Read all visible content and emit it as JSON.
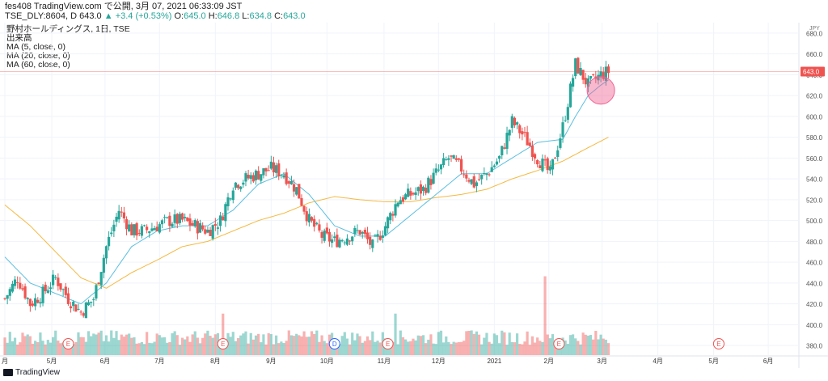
{
  "header": {
    "line1": "fes408 TradingView.com で公開, 3月 07, 2021 06:33:09 JST",
    "symbol": "TSE_DLY:8604, D",
    "last": "643.0",
    "change_arrow": "▲",
    "change": "+3.4 (+0.53%)",
    "o_label": "O:",
    "o": "645.0",
    "h_label": "H:",
    "h": "646.8",
    "l_label": "L:",
    "l": "634.8",
    "c_label": "C:",
    "c": "643.0"
  },
  "legend": {
    "title": "野村ホールディングス, 1日, TSE",
    "volume": "出来高",
    "ma5": "MA (5, close, 0)",
    "ma20": "MA (20, close, 0)",
    "ma60": "MA (60, close, 0)"
  },
  "watermark": "TradingView",
  "colors": {
    "up": "#26a69a",
    "down": "#ef5350",
    "ma5": "#1e5bcf",
    "ma20": "#5bbfe0",
    "ma60": "#f5b941",
    "price_line": "#ef5350",
    "highlight": "#f06292"
  },
  "chart_data": {
    "type": "candlestick",
    "currency": "JPY",
    "last_price_label": "643.0",
    "y_ticks": [
      380,
      400,
      420,
      440,
      460,
      480,
      500,
      520,
      540,
      560,
      580,
      600,
      620,
      640,
      660,
      680
    ],
    "ylim": [
      370,
      690
    ],
    "x_labels": [
      {
        "label": "月",
        "week": 0
      },
      {
        "label": "5月",
        "week": 3.7
      },
      {
        "label": "6月",
        "week": 7.9
      },
      {
        "label": "7月",
        "week": 12.2
      },
      {
        "label": "8月",
        "week": 16.6
      },
      {
        "label": "9月",
        "week": 21
      },
      {
        "label": "10月",
        "week": 25.4
      },
      {
        "label": "11月",
        "week": 29.9
      },
      {
        "label": "12月",
        "week": 34.2
      },
      {
        "label": "2021",
        "week": 38.6
      },
      {
        "label": "2月",
        "week": 42.9
      },
      {
        "label": "3月",
        "week": 47.1
      },
      {
        "label": "4月",
        "week": 51.5
      },
      {
        "label": "5月",
        "week": 55.9
      },
      {
        "label": "6月",
        "week": 60.2
      }
    ],
    "event_markers": [
      {
        "label": "E",
        "week": 5.0
      },
      {
        "label": "E",
        "week": 17.2
      },
      {
        "label": "D",
        "week": 26.0
      },
      {
        "label": "E",
        "week": 30.2
      },
      {
        "label": "E",
        "week": 43.7
      },
      {
        "label": "E",
        "week": 56.3
      }
    ],
    "weeks_total": 63,
    "close_keypoints": [
      [
        0,
        425
      ],
      [
        1,
        445
      ],
      [
        2,
        420
      ],
      [
        3,
        430
      ],
      [
        4,
        445
      ],
      [
        5,
        425
      ],
      [
        6,
        412
      ],
      [
        7,
        425
      ],
      [
        8,
        475
      ],
      [
        9,
        510
      ],
      [
        10,
        490
      ],
      [
        11,
        490
      ],
      [
        12,
        495
      ],
      [
        13,
        500
      ],
      [
        14,
        500
      ],
      [
        15,
        495
      ],
      [
        16,
        490
      ],
      [
        17,
        500
      ],
      [
        18,
        535
      ],
      [
        19,
        540
      ],
      [
        20,
        545
      ],
      [
        21,
        550
      ],
      [
        22,
        545
      ],
      [
        23,
        530
      ],
      [
        24,
        500
      ],
      [
        25,
        485
      ],
      [
        26,
        480
      ],
      [
        27,
        485
      ],
      [
        28,
        490
      ],
      [
        29,
        475
      ],
      [
        30,
        495
      ],
      [
        31,
        520
      ],
      [
        32,
        525
      ],
      [
        33,
        530
      ],
      [
        34,
        545
      ],
      [
        35,
        560
      ],
      [
        36,
        550
      ],
      [
        37,
        535
      ],
      [
        38,
        545
      ],
      [
        39,
        560
      ],
      [
        40,
        595
      ],
      [
        41,
        580
      ],
      [
        42,
        560
      ],
      [
        43,
        545
      ],
      [
        44,
        590
      ],
      [
        45,
        650
      ],
      [
        46,
        630
      ],
      [
        47,
        640
      ],
      [
        47.6,
        643
      ]
    ],
    "ma20_keypoints": [
      [
        0,
        465
      ],
      [
        2,
        440
      ],
      [
        4,
        430
      ],
      [
        6,
        420
      ],
      [
        8,
        440
      ],
      [
        10,
        475
      ],
      [
        12,
        490
      ],
      [
        14,
        495
      ],
      [
        16,
        495
      ],
      [
        18,
        510
      ],
      [
        20,
        535
      ],
      [
        22,
        545
      ],
      [
        24,
        525
      ],
      [
        26,
        495
      ],
      [
        28,
        485
      ],
      [
        30,
        485
      ],
      [
        32,
        505
      ],
      [
        34,
        525
      ],
      [
        36,
        545
      ],
      [
        38,
        545
      ],
      [
        40,
        560
      ],
      [
        42,
        575
      ],
      [
        44,
        578
      ],
      [
        45,
        600
      ],
      [
        46,
        620
      ],
      [
        47,
        630
      ],
      [
        47.6,
        635
      ]
    ],
    "ma60_keypoints": [
      [
        0,
        515
      ],
      [
        2,
        495
      ],
      [
        4,
        470
      ],
      [
        6,
        445
      ],
      [
        8,
        435
      ],
      [
        10,
        450
      ],
      [
        12,
        462
      ],
      [
        14,
        475
      ],
      [
        16,
        480
      ],
      [
        18,
        490
      ],
      [
        20,
        500
      ],
      [
        22,
        507
      ],
      [
        24,
        517
      ],
      [
        26,
        523
      ],
      [
        28,
        520
      ],
      [
        30,
        518
      ],
      [
        32,
        518
      ],
      [
        34,
        522
      ],
      [
        36,
        525
      ],
      [
        38,
        530
      ],
      [
        40,
        540
      ],
      [
        42,
        548
      ],
      [
        44,
        557
      ],
      [
        46,
        570
      ],
      [
        47.6,
        580
      ]
    ],
    "volume_note": "relative volume bars, scaled 0-1",
    "volume_spike_weeks": [
      42.6,
      30.8,
      17.2
    ]
  }
}
